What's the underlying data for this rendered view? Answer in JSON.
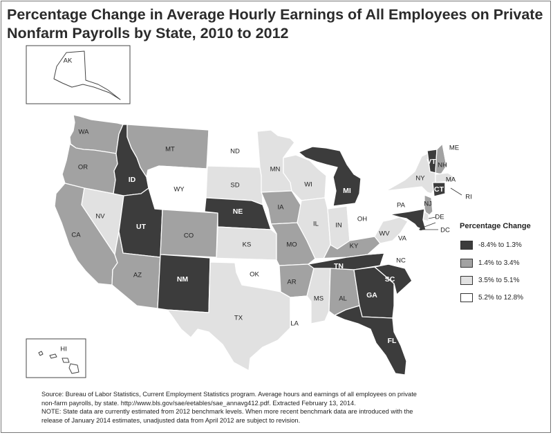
{
  "title_line1": "Percentage Change in Average Hourly Earnings of All Employees on Private",
  "title_line2": "Nonfarm Payrolls by State, 2010 to 2012",
  "legend": {
    "title": "Percentage Change",
    "classes": [
      {
        "label": "-8.4% to 1.3%",
        "color": "#3c3c3c"
      },
      {
        "label": "1.4% to 3.4%",
        "color": "#a2a2a2"
      },
      {
        "label": "3.5% to 5.1%",
        "color": "#e1e1e1"
      },
      {
        "label": "5.2% to 12.8%",
        "color": "#ffffff"
      }
    ]
  },
  "states": {
    "WA": 1,
    "OR": 1,
    "CA": 1,
    "NV": 2,
    "ID": 0,
    "MT": 1,
    "WY": 3,
    "UT": 0,
    "AZ": 1,
    "CO": 1,
    "NM": 0,
    "ND": 3,
    "SD": 2,
    "NE": 0,
    "KS": 2,
    "OK": 3,
    "TX": 2,
    "MN": 2,
    "IA": 1,
    "MO": 1,
    "AR": 1,
    "LA": 3,
    "WI": 2,
    "IL": 2,
    "MI": 0,
    "IN": 2,
    "OH": 3,
    "KY": 1,
    "TN": 0,
    "MS": 2,
    "AL": 1,
    "GA": 0,
    "FL": 0,
    "SC": 0,
    "NC": 3,
    "VA": 3,
    "WV": 2,
    "PA": 3,
    "NY": 2,
    "VT": 0,
    "NH": 1,
    "ME": 3,
    "MA": 2,
    "RI": 3,
    "CT": 0,
    "NJ": 1,
    "DE": 2,
    "MD": 0,
    "DC": 3,
    "AK": 3,
    "HI": 3
  },
  "notes": {
    "line1": "Source: Bureau of Labor Statistics, Current Employment Statistics program. Average hours and earnings of all employees on private",
    "line2": "non-farm payrolls, by state. http://www.bls.gov/sae/eetables/sae_annavg412.pdf. Extracted February 13, 2014.",
    "line3": "NOTE: State data are currently estimated from 2012 benchmark levels. When more recent benchmark data are introduced with the",
    "line4": "release of January 2014 estimates, unadjusted data from April 2012 are subject to revision."
  }
}
